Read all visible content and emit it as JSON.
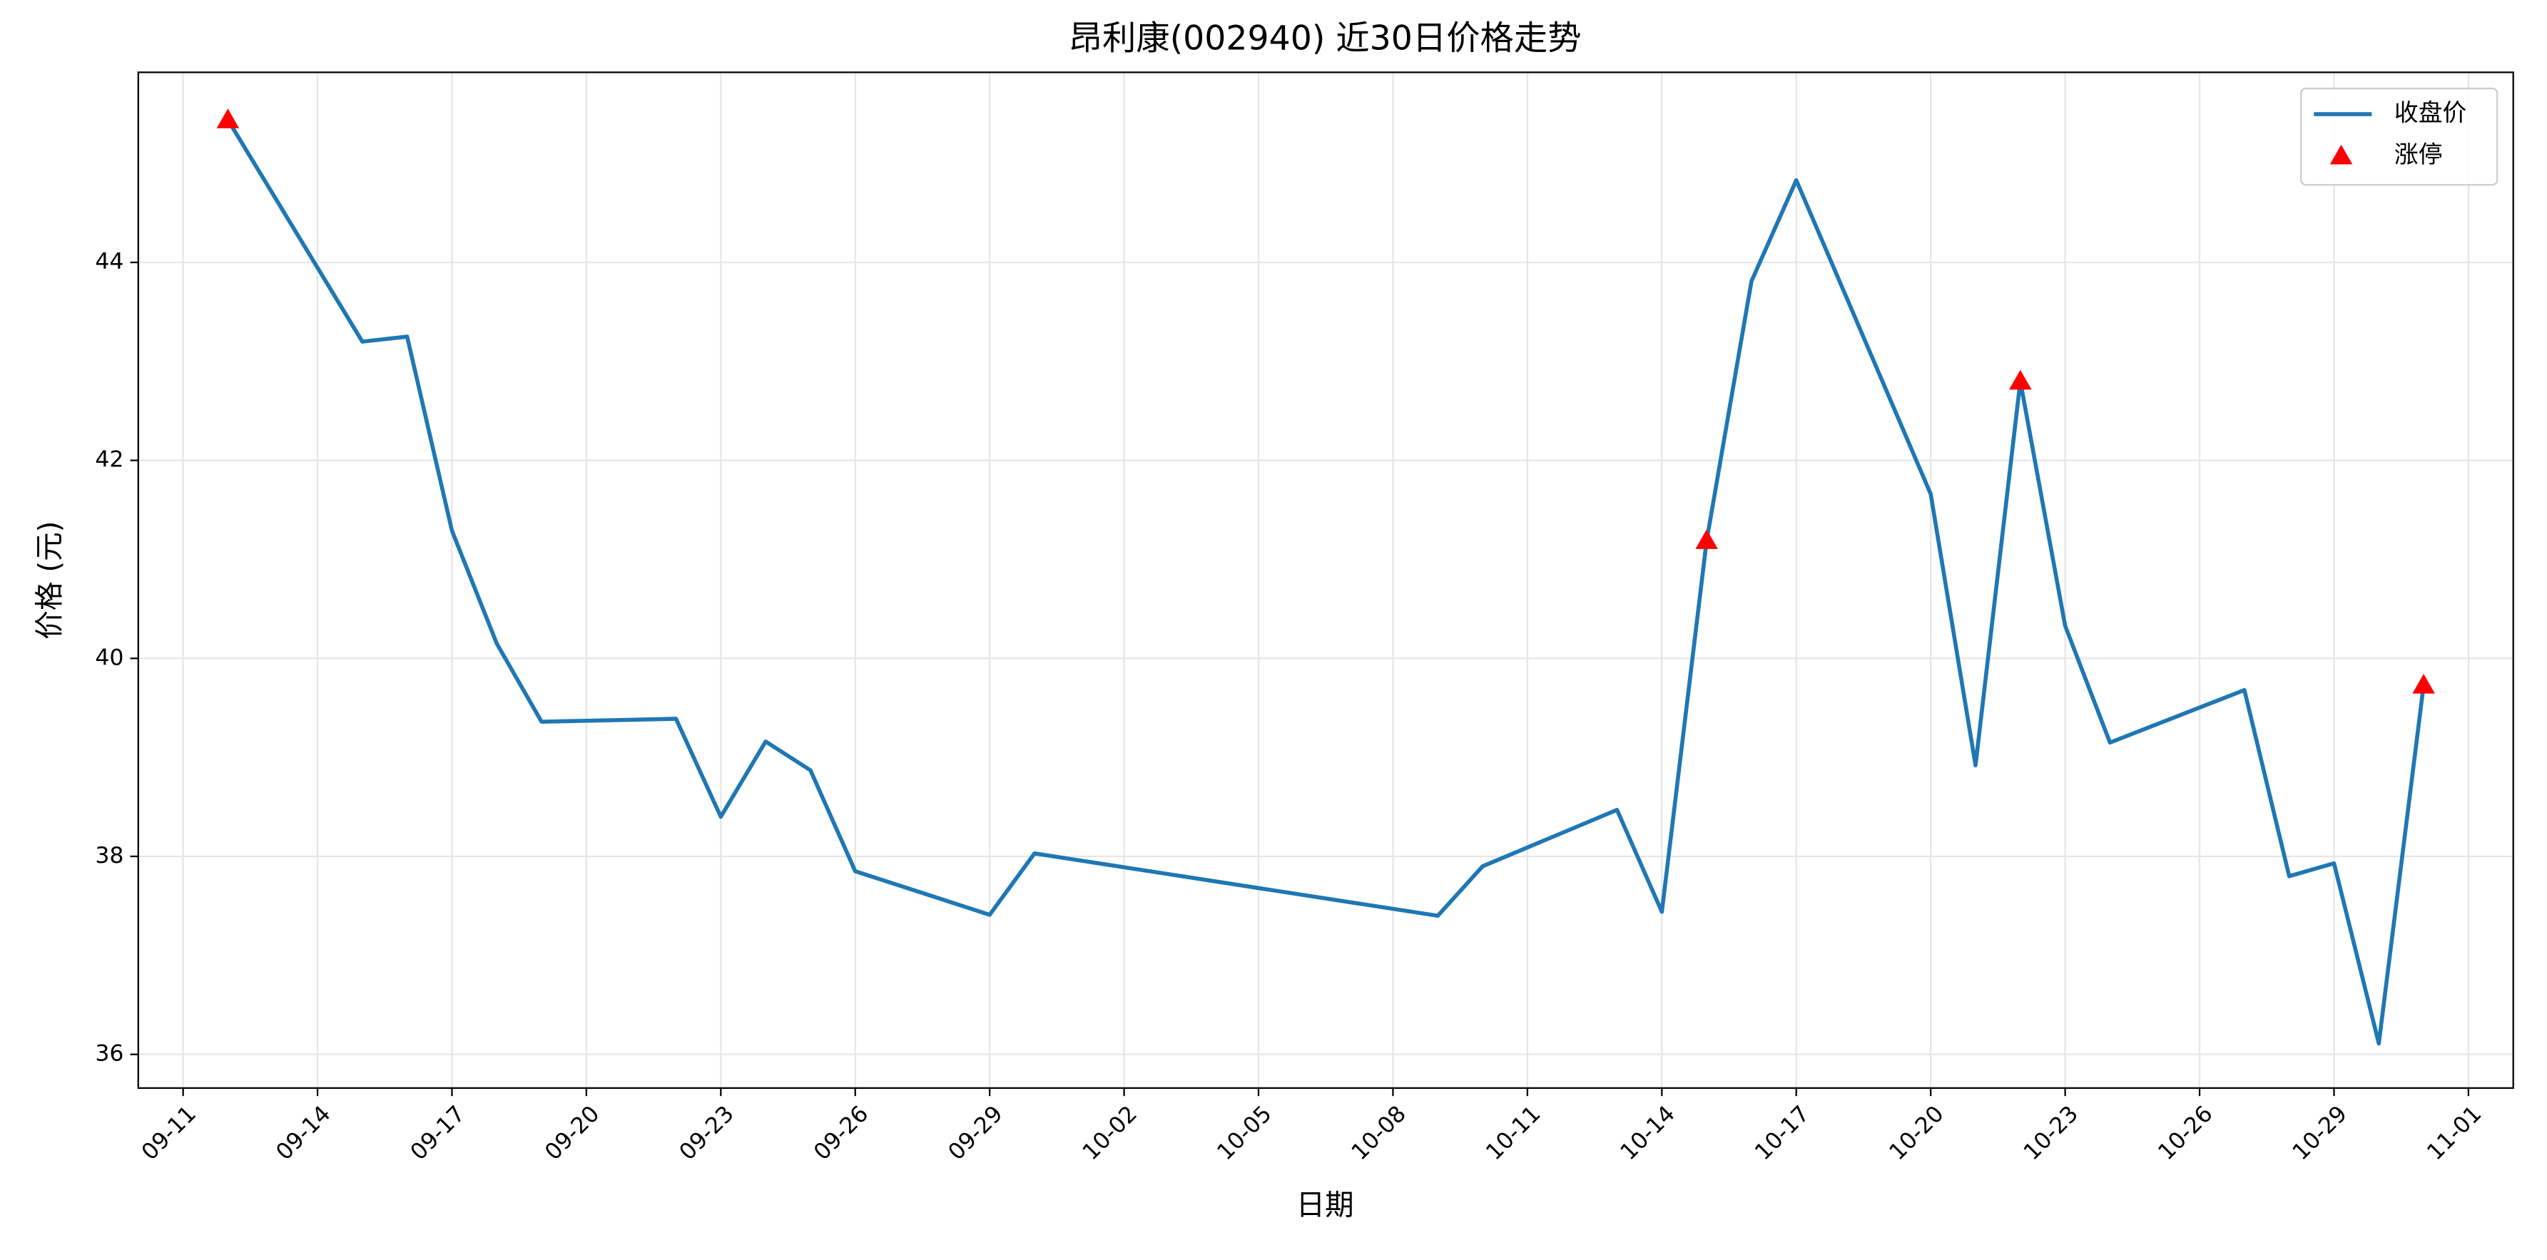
{
  "chart_data": {
    "type": "line",
    "title": "昂利康(002940) 近30日价格走势",
    "xlabel": "日期",
    "ylabel": "价格 (元)",
    "series": [
      {
        "name": "收盘价",
        "color": "#1f77b4",
        "kind": "line",
        "x": [
          "09-12",
          "09-15",
          "09-16",
          "09-17",
          "09-18",
          "09-19",
          "09-22",
          "09-23",
          "09-24",
          "09-25",
          "09-26",
          "09-29",
          "09-30",
          "10-09",
          "10-10",
          "10-13",
          "10-14",
          "10-15",
          "10-16",
          "10-17",
          "10-20",
          "10-21",
          "10-22",
          "10-23",
          "10-24",
          "10-27",
          "10-28",
          "10-29",
          "10-30",
          "10-31"
        ],
        "values": [
          45.44,
          43.2,
          43.25,
          41.29,
          40.15,
          39.36,
          39.39,
          38.4,
          39.16,
          38.87,
          37.85,
          37.41,
          38.03,
          37.4,
          37.9,
          38.47,
          37.44,
          41.19,
          43.81,
          44.83,
          41.66,
          38.92,
          42.8,
          40.33,
          39.15,
          39.68,
          37.8,
          37.93,
          36.11,
          39.73
        ]
      },
      {
        "name": "涨停",
        "color": "#ff0000",
        "kind": "scatter",
        "marker": "triangle",
        "x": [
          "09-12",
          "10-15",
          "10-22",
          "10-31"
        ],
        "values": [
          45.44,
          41.19,
          42.8,
          39.73
        ]
      }
    ],
    "xlim": [
      "09-10",
      "11-02"
    ],
    "xticks": [
      "09-11",
      "09-14",
      "09-17",
      "09-20",
      "09-23",
      "09-26",
      "09-29",
      "10-02",
      "10-05",
      "10-08",
      "10-11",
      "10-14",
      "10-17",
      "10-20",
      "10-23",
      "10-26",
      "10-29",
      "11-01"
    ],
    "ylim": [
      35.66,
      45.92
    ],
    "yticks": [
      36,
      38,
      40,
      42,
      44
    ],
    "grid": true,
    "legend": "upper-right"
  }
}
